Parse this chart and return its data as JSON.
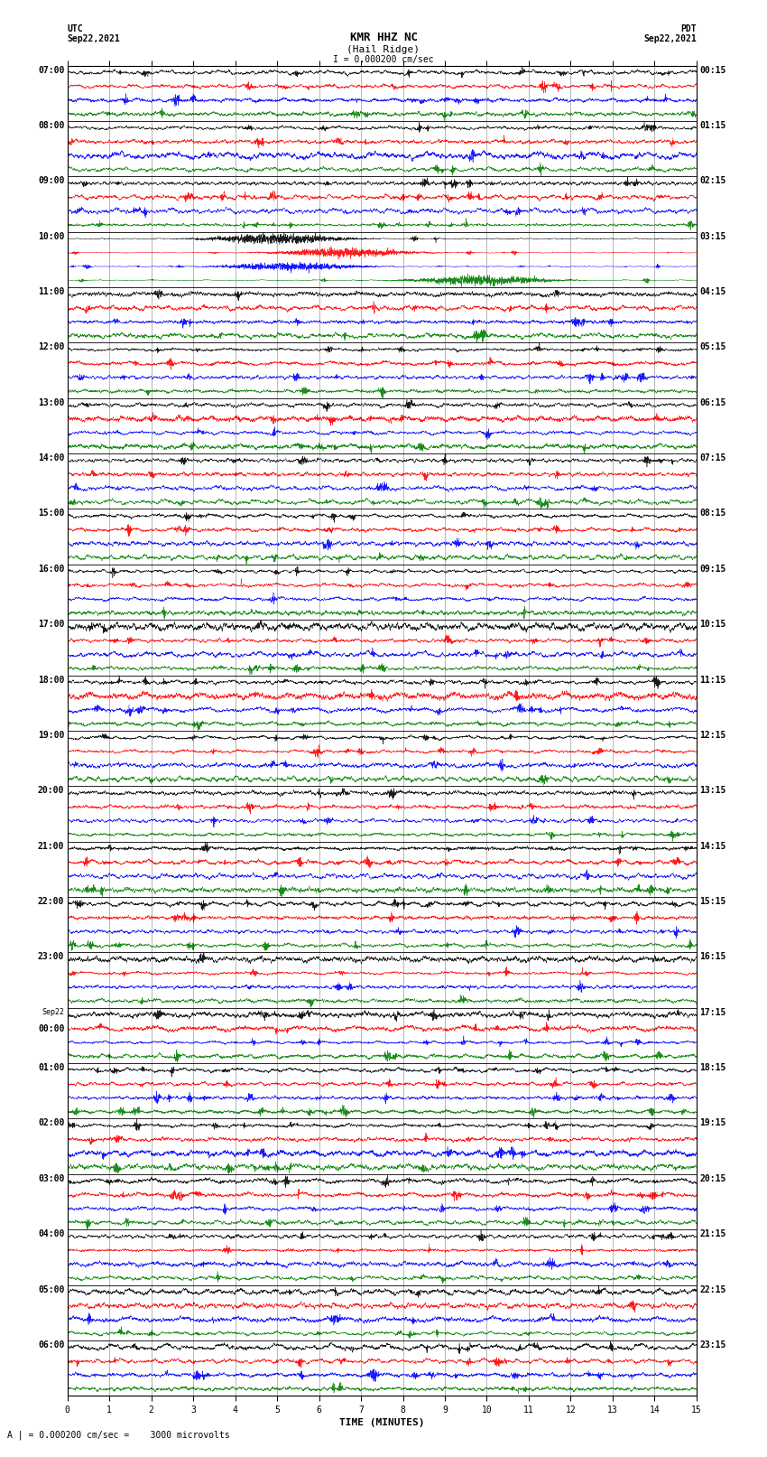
{
  "title_line1": "KMR HHZ NC",
  "title_line2": "(Hail Ridge)",
  "scale_text": "I = 0.000200 cm/sec",
  "utc_label": "UTC",
  "utc_date": "Sep22,2021",
  "pdt_label": "PDT",
  "pdt_date": "Sep22,2021",
  "bottom_scale": "A | = 0.000200 cm/sec =    3000 microvolts",
  "left_times": [
    "07:00",
    "08:00",
    "09:00",
    "10:00",
    "11:00",
    "12:00",
    "13:00",
    "14:00",
    "15:00",
    "16:00",
    "17:00",
    "18:00",
    "19:00",
    "20:00",
    "21:00",
    "22:00",
    "23:00",
    "Sep22",
    "00:00",
    "01:00",
    "02:00",
    "03:00",
    "04:00",
    "05:00",
    "06:00"
  ],
  "right_times": [
    "00:15",
    "01:15",
    "02:15",
    "03:15",
    "04:15",
    "05:15",
    "06:15",
    "07:15",
    "08:15",
    "09:15",
    "10:15",
    "11:15",
    "12:15",
    "13:15",
    "14:15",
    "15:15",
    "16:15",
    "17:15",
    "18:15",
    "19:15",
    "20:15",
    "21:15",
    "22:15",
    "23:15"
  ],
  "n_rows": 24,
  "traces_per_row": 4,
  "colors": [
    "black",
    "red",
    "blue",
    "green"
  ],
  "x_ticks": [
    0,
    1,
    2,
    3,
    4,
    5,
    6,
    7,
    8,
    9,
    10,
    11,
    12,
    13,
    14,
    15
  ],
  "x_label": "TIME (MINUTES)",
  "minutes_per_row": 15,
  "background_color": "white",
  "fig_width": 8.5,
  "fig_height": 16.13
}
